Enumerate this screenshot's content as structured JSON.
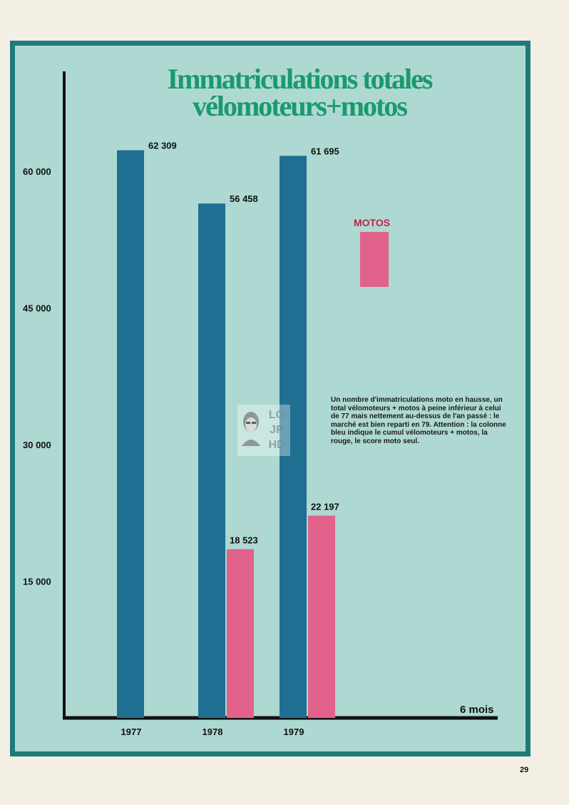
{
  "title": {
    "line1": "Immatriculations totales",
    "line2": "vélomoteurs+motos"
  },
  "note": "Un nombre d'immatriculations moto en hausse, un total vélomoteurs + motos à peine inférieur à celui de 77 mais nettement au-dessus de l'an passé : le marché est bien reparti en 79. Attention : la colonne bleu indique le cumul vélomoteurs + motos, la rouge, le score moto seul.",
  "period_label": "6 mois",
  "page_number": "29",
  "watermark": {
    "text": "LG\nJP\nHD"
  },
  "colors": {
    "background": "#aed9d2",
    "frame": "#1f7a7a",
    "total": "#1f6f93",
    "motos": "#e0628a",
    "title": "#1a9a6e"
  },
  "chart_data": {
    "type": "bar",
    "title": "Immatriculations totales vélomoteurs+motos",
    "categories": [
      "1977",
      "1978",
      "1979"
    ],
    "series": [
      {
        "name": "",
        "values": [
          62309,
          56458,
          61695
        ],
        "labels": [
          "62 309",
          "56 458",
          "61 695"
        ],
        "color": "#1f6f93"
      },
      {
        "name": "MOTOS",
        "values": [
          null,
          18523,
          22197
        ],
        "labels": [
          "",
          "18 523",
          "22 197"
        ],
        "color": "#e0628a"
      }
    ],
    "yticks": [
      15000,
      30000,
      45000,
      60000
    ],
    "ytick_labels": [
      "15 000",
      "30 000",
      "45 000",
      "60 000"
    ],
    "xlabel": "6 mois",
    "ylabel": "",
    "ylim": [
      0,
      60000
    ],
    "legend": "right",
    "grid": false
  }
}
